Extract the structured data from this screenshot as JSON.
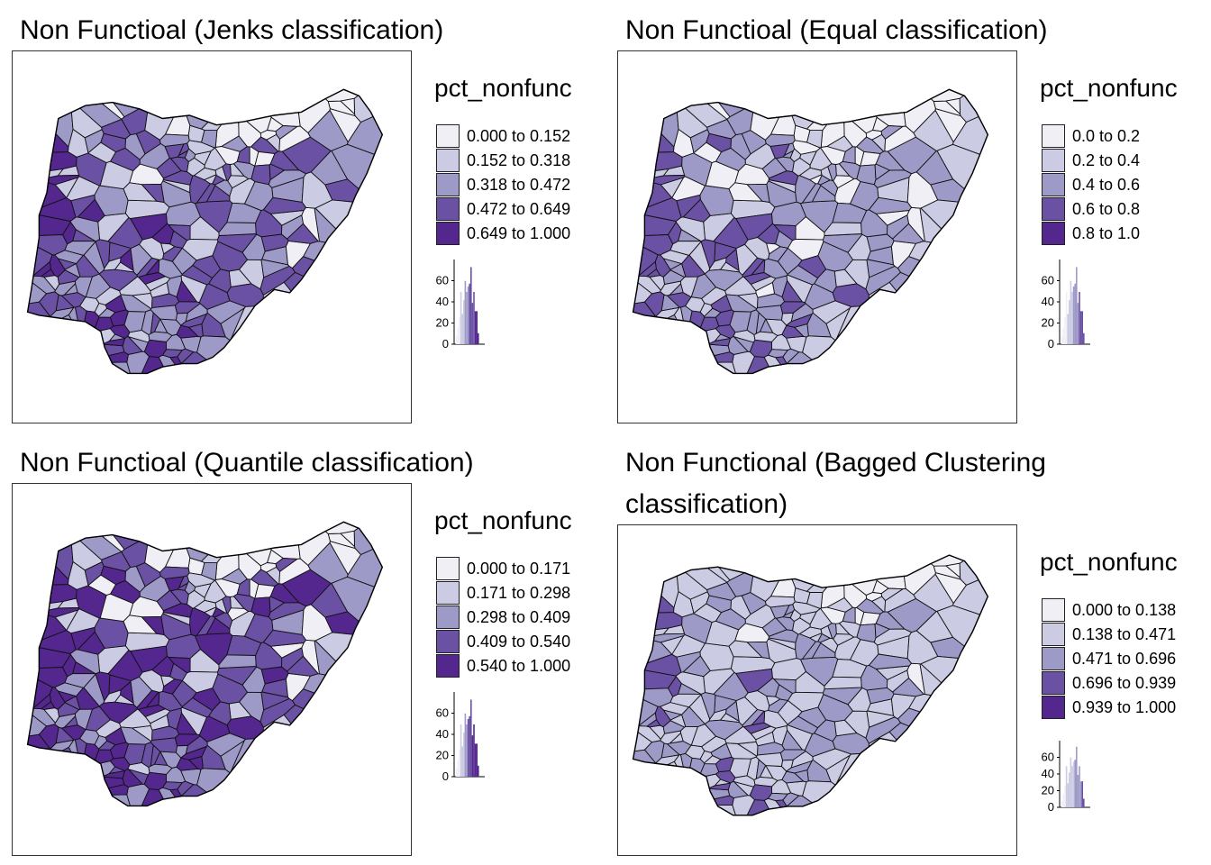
{
  "legend_title": "pct_nonfunc",
  "colors": [
    "#f0eff6",
    "#cbcbe3",
    "#9e9ac8",
    "#6a51a3",
    "#54278f"
  ],
  "hist_ticks": [
    "60",
    "40",
    "20",
    "0"
  ],
  "panels": [
    {
      "title": "Non Functioal (Jenks classification)",
      "classes": [
        "0.000 to 0.152",
        "0.152 to 0.318",
        "0.318 to 0.472",
        "0.472 to 0.649",
        "0.649 to 1.000"
      ],
      "breaks": [
        0.152,
        0.318,
        0.472,
        0.649
      ],
      "seed": 11
    },
    {
      "title": "Non Functioal (Equal classification)",
      "classes": [
        "0.0 to 0.2",
        "0.2 to 0.4",
        "0.4 to 0.6",
        "0.6 to 0.8",
        "0.8 to 1.0"
      ],
      "breaks": [
        0.2,
        0.4,
        0.6,
        0.8
      ],
      "seed": 11
    },
    {
      "title": "Non Functioal (Quantile classification)",
      "classes": [
        "0.000 to 0.171",
        "0.171 to 0.298",
        "0.298 to 0.409",
        "0.409 to 0.540",
        "0.540 to 1.000"
      ],
      "breaks": [
        0.171,
        0.298,
        0.409,
        0.54
      ],
      "seed": 11
    },
    {
      "title": "Non Functional (Bagged Clustering classification)",
      "classes": [
        "0.000 to 0.138",
        "0.138 to 0.471",
        "0.471 to 0.696",
        "0.696 to 0.939",
        "0.939 to 1.000"
      ],
      "breaks": [
        0.138,
        0.471,
        0.696,
        0.939
      ],
      "seed": 11
    }
  ]
}
